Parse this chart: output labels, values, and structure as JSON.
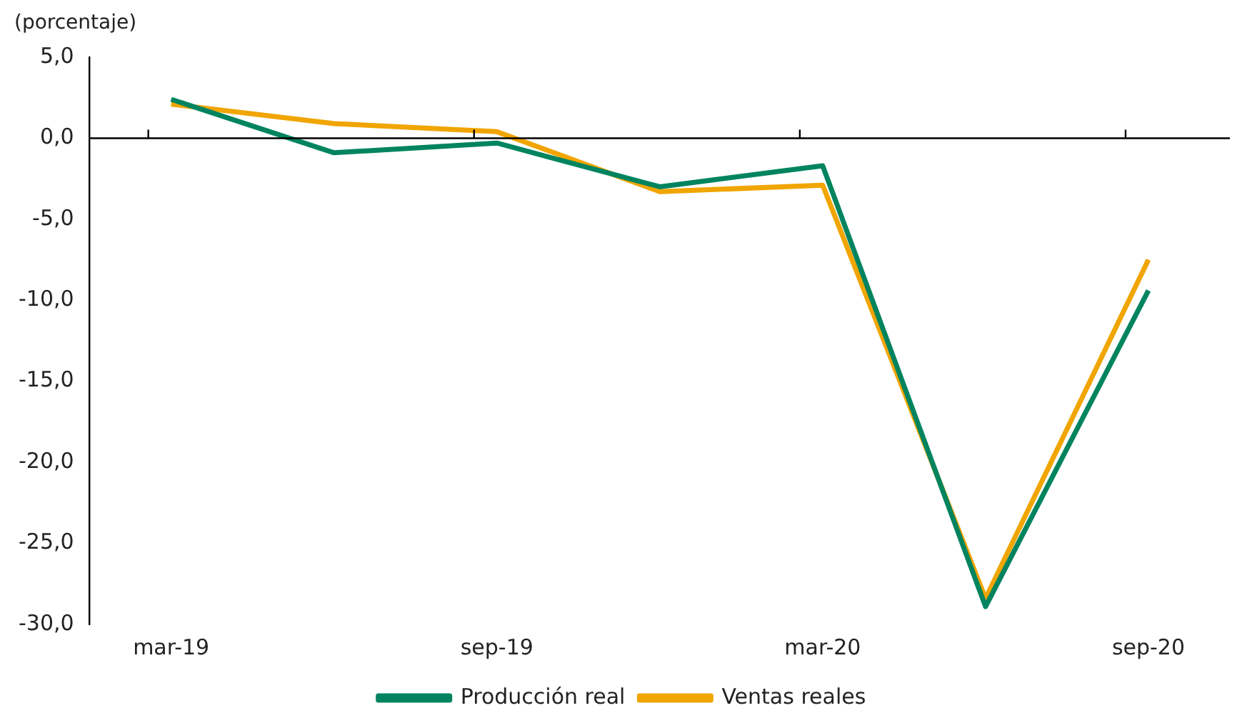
{
  "chart_data": {
    "type": "line",
    "ylabel": "(porcentaje)",
    "categories": [
      "mar-19",
      null,
      "sep-19",
      null,
      "mar-20",
      null,
      "sep-20"
    ],
    "series": [
      {
        "name": "Producción real",
        "color": "#00845f",
        "values": [
          2.4,
          -0.9,
          -0.3,
          -3.0,
          -1.7,
          -28.9,
          -9.4
        ]
      },
      {
        "name": "Ventas reales",
        "color": "#f0a500",
        "values": [
          2.1,
          0.9,
          0.4,
          -3.3,
          -2.9,
          -28.4,
          -7.5
        ]
      }
    ],
    "ylim": [
      -30,
      5
    ],
    "yticks": [
      {
        "value": 5,
        "label": "5,0"
      },
      {
        "value": 0,
        "label": "0,0"
      },
      {
        "value": -5,
        "label": "-5,0"
      },
      {
        "value": -10,
        "label": "-10,0"
      },
      {
        "value": -15,
        "label": "-15,0"
      },
      {
        "value": -20,
        "label": "-20,0"
      },
      {
        "value": -25,
        "label": "-25,0"
      },
      {
        "value": -30,
        "label": "-30,0"
      }
    ],
    "ref_lines": [
      {
        "axis": "y",
        "value": 0,
        "color": "#000000"
      }
    ],
    "grid": false,
    "legend": "bottom",
    "marker": "none",
    "line_style": "solid"
  }
}
